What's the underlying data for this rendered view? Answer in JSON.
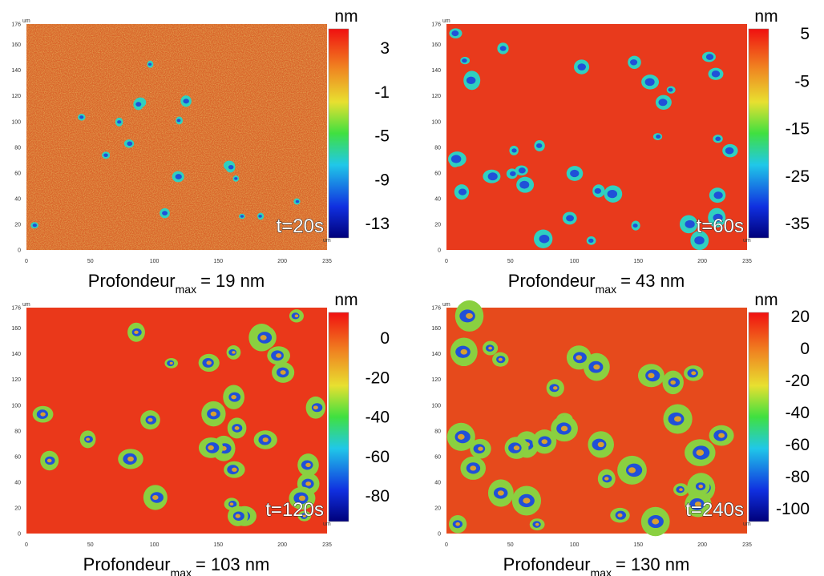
{
  "panels": [
    {
      "time": "t=20s",
      "unit": "nm",
      "x_unit": "um",
      "y_unit": "um",
      "colorbar_ticks": [
        "3",
        "-1",
        "-5",
        "-9",
        "-13"
      ],
      "x_ticks": [
        "0",
        "50",
        "100",
        "150",
        "200",
        "235"
      ],
      "y_ticks": [
        "0",
        "20",
        "40",
        "60",
        "80",
        "100",
        "120",
        "140",
        "160",
        "176"
      ],
      "caption": {
        "main": "Profondeur",
        "sub": "max",
        "rest": "= 19 nm"
      }
    },
    {
      "time": "t=60s",
      "unit": "nm",
      "x_unit": "um",
      "y_unit": "um",
      "colorbar_ticks": [
        "5",
        "-5",
        "-15",
        "-25",
        "-35"
      ],
      "x_ticks": [
        "0",
        "50",
        "100",
        "150",
        "200",
        "235"
      ],
      "y_ticks": [
        "0",
        "20",
        "40",
        "60",
        "80",
        "100",
        "120",
        "140",
        "160",
        "176"
      ],
      "caption": {
        "main": "Profondeur",
        "sub": "max",
        "rest": "= 43 nm"
      }
    },
    {
      "time": "t=120s",
      "unit": "nm",
      "x_unit": "um",
      "y_unit": "um",
      "colorbar_ticks": [
        "0",
        "-20",
        "-40",
        "-60",
        "-80"
      ],
      "x_ticks": [
        "0",
        "50",
        "100",
        "150",
        "200",
        "235"
      ],
      "y_ticks": [
        "0",
        "20",
        "40",
        "60",
        "80",
        "100",
        "120",
        "140",
        "160",
        "176"
      ],
      "caption": {
        "main": "Profondeur",
        "sub": "max",
        "rest": "= 103 nm"
      }
    },
    {
      "time": "t=240s",
      "unit": "nm",
      "x_unit": "um",
      "y_unit": "um",
      "colorbar_ticks": [
        "20",
        "0",
        "-20",
        "-40",
        "-60",
        "-80",
        "-100"
      ],
      "x_ticks": [
        "0",
        "50",
        "100",
        "150",
        "200",
        "235"
      ],
      "y_ticks": [
        "0",
        "20",
        "40",
        "60",
        "80",
        "100",
        "120",
        "140",
        "160",
        "176"
      ],
      "caption": {
        "main": "Profondeur",
        "sub": "max",
        "rest": "= 130 nm"
      }
    }
  ]
}
